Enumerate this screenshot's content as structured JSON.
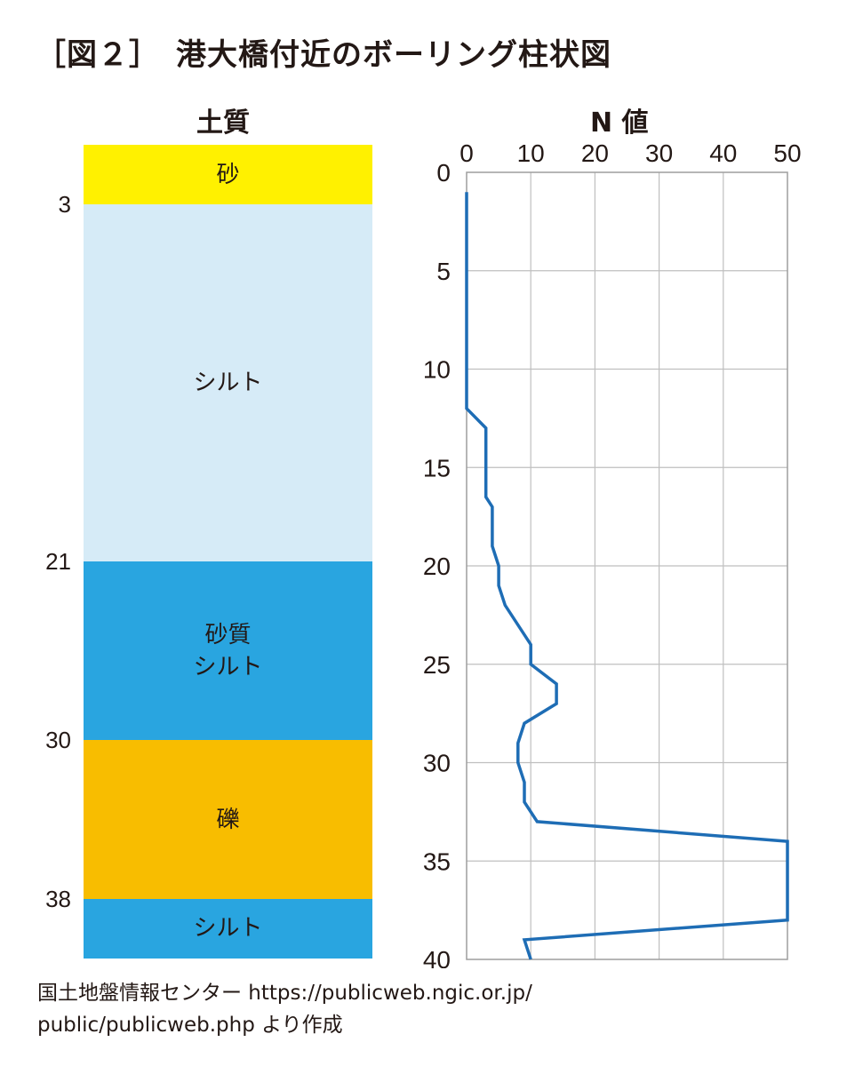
{
  "title": "［図２］　港大橋付近のボーリング柱状図",
  "soil_column": {
    "header": "土質",
    "depth_range": [
      0,
      41
    ],
    "layers": [
      {
        "label": "砂",
        "top": 0,
        "bottom": 3,
        "color": "#fff100"
      },
      {
        "label": "シルト",
        "top": 3,
        "bottom": 21,
        "color": "#d6ebf7"
      },
      {
        "label": "砂質\nシルト",
        "top": 21,
        "bottom": 30,
        "color": "#29a5e0"
      },
      {
        "label": "礫",
        "top": 30,
        "bottom": 38,
        "color": "#f8bd00"
      },
      {
        "label": "シルト",
        "top": 38,
        "bottom": 41,
        "color": "#29a5e0"
      }
    ],
    "boundary_labels": [
      "3",
      "21",
      "30",
      "38"
    ]
  },
  "chart_data": {
    "type": "line",
    "title": "N 値",
    "xlabel": "",
    "ylabel": "",
    "xlim": [
      0,
      50
    ],
    "ylim": [
      0,
      40
    ],
    "x_ticks": [
      0,
      10,
      20,
      30,
      40,
      50
    ],
    "y_ticks": [
      0,
      5,
      10,
      15,
      20,
      25,
      30,
      35,
      40
    ],
    "x_axis_position": "top",
    "y_inverted": true,
    "grid": true,
    "line_color": "#1e6db5",
    "series": [
      {
        "name": "",
        "points": [
          [
            0,
            1
          ],
          [
            0,
            12
          ],
          [
            3,
            13
          ],
          [
            3,
            16.5
          ],
          [
            4,
            17
          ],
          [
            4,
            19
          ],
          [
            5,
            20
          ],
          [
            5,
            21
          ],
          [
            6,
            22
          ],
          [
            10,
            24
          ],
          [
            10,
            25
          ],
          [
            14,
            26
          ],
          [
            14,
            27
          ],
          [
            9,
            28
          ],
          [
            8,
            29
          ],
          [
            8,
            30
          ],
          [
            9,
            31
          ],
          [
            9,
            32
          ],
          [
            11,
            33
          ],
          [
            50,
            34
          ],
          [
            50,
            38
          ],
          [
            9,
            39
          ],
          [
            10,
            40
          ]
        ]
      }
    ]
  },
  "source": "国土地盤情報センター https://publicweb.ngic.or.jp/\npublic/publicweb.php より作成"
}
